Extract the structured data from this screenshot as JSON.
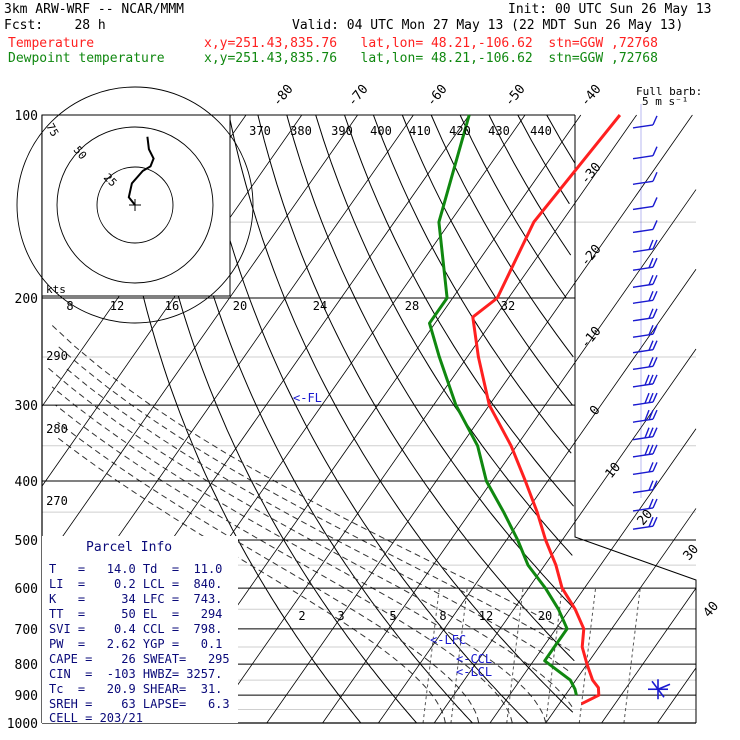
{
  "header": {
    "model": "3km ARW-WRF -- NCAR/MMM",
    "init": "Init: 00 UTC Sun 26 May 13",
    "fcst": "Fcst:    28 h",
    "valid": "Valid: 04 UTC Mon 27 May 13 (22 MDT Sun 26 May 13)",
    "temp_label": "Temperature",
    "temp_info": "x,y=251.43,835.76   lat,lon= 48.21,-106.62  stn=GGW ,72768",
    "dewp_label": "Dewpoint temperature",
    "dewp_info": "x,y=251.43,835.76   lat,lon= 48.21,-106.62  stn=GGW ,72768",
    "barb_label_1": "Full barb:",
    "barb_label_2": "5 m s⁻¹"
  },
  "colors": {
    "temperature": "#ff2020",
    "dewpoint": "#108810",
    "wind": "#1a1ad0",
    "header_text": "#000000",
    "parcel_text": "#0a0a7a"
  },
  "chart_data": {
    "type": "line",
    "pressure_levels": [
      100,
      200,
      300,
      400,
      500,
      600,
      700,
      800,
      900,
      1000
    ],
    "pressure_level_labels": [
      "100",
      "200",
      "300",
      "400",
      "500",
      "600",
      "700",
      "800",
      "900",
      "1000"
    ],
    "isotherm_labels": [
      "-80",
      "-70",
      "-60",
      "-50",
      "-40",
      "-30",
      "-20",
      "-10",
      "0",
      "10",
      "20",
      "30",
      "40"
    ],
    "isentrope_labels": [
      "370",
      "380",
      "390",
      "400",
      "410",
      "420",
      "430",
      "440"
    ],
    "theta_dry_labels": [
      "290",
      "280",
      "270"
    ],
    "mixing_ratio_labels": [
      "2",
      "3",
      "5",
      "8",
      "12",
      "20"
    ],
    "hodograph": {
      "speed_labels": [
        "8",
        "12",
        "16",
        "20",
        "24",
        "28",
        "32"
      ],
      "ring_labels": [
        "75",
        "50",
        "25"
      ],
      "units_label": "kts",
      "trace": [
        [
          0,
          0
        ],
        [
          -4,
          5
        ],
        [
          -2,
          14
        ],
        [
          5,
          22
        ],
        [
          10,
          25
        ],
        [
          12,
          30
        ],
        [
          9,
          36
        ],
        [
          8,
          44
        ]
      ]
    },
    "annotations": {
      "fl": "<-FL",
      "lfc": "<-LFC",
      "ccl": "<-CCL",
      "lcl": "<-LCL"
    },
    "series": [
      {
        "name": "Temperature",
        "points": [
          [
            100,
            -53
          ],
          [
            150,
            -55
          ],
          [
            200,
            -52
          ],
          [
            215,
            -54
          ],
          [
            250,
            -48
          ],
          [
            300,
            -40
          ],
          [
            350,
            -31
          ],
          [
            400,
            -24
          ],
          [
            450,
            -18
          ],
          [
            500,
            -13
          ],
          [
            550,
            -8
          ],
          [
            600,
            -4
          ],
          [
            650,
            1
          ],
          [
            700,
            5
          ],
          [
            750,
            7
          ],
          [
            800,
            10
          ],
          [
            850,
            13
          ],
          [
            875,
            15
          ],
          [
            900,
            16
          ],
          [
            930,
            14
          ]
        ]
      },
      {
        "name": "Dewpoint temperature",
        "points": [
          [
            100,
            -80
          ],
          [
            150,
            -72
          ],
          [
            200,
            -61
          ],
          [
            220,
            -61
          ],
          [
            250,
            -55
          ],
          [
            300,
            -46
          ],
          [
            350,
            -37
          ],
          [
            400,
            -31
          ],
          [
            450,
            -24
          ],
          [
            500,
            -18
          ],
          [
            550,
            -13
          ],
          [
            600,
            -7
          ],
          [
            650,
            -2
          ],
          [
            700,
            2
          ],
          [
            750,
            2
          ],
          [
            790,
            2
          ],
          [
            850,
            9
          ],
          [
            880,
            11
          ],
          [
            900,
            12
          ]
        ]
      }
    ],
    "wind_barbs_pressure": [
      105,
      118,
      130,
      143,
      156,
      168,
      180,
      192,
      204,
      218,
      232,
      246,
      262,
      280,
      300,
      320,
      342,
      365,
      390,
      418,
      448,
      480
    ],
    "wind_barbs_flags": [
      1,
      1,
      1,
      1,
      1,
      2,
      2,
      2,
      2,
      2,
      2,
      2,
      2,
      3,
      3,
      3,
      3,
      3,
      2,
      2,
      2,
      2
    ]
  },
  "parcel": {
    "title": "Parcel Info",
    "rows": [
      "T   =   14.0 Td  =  11.0",
      "LI  =    0.2 LCL =  840.",
      "K   =     34 LFC =  743.",
      "TT  =     50 EL  =   294",
      "SVI =    0.4 CCL =  798.",
      "PW  =   2.62 YGP =   0.1",
      "CAPE =    26 SWEAT=   295",
      "CIN  =  -103 HWBZ= 3257.",
      "Tc  =   20.9 SHEAR=  31.",
      "SREH =    63 LAPSE=   6.3",
      "CELL = 203/21"
    ]
  }
}
